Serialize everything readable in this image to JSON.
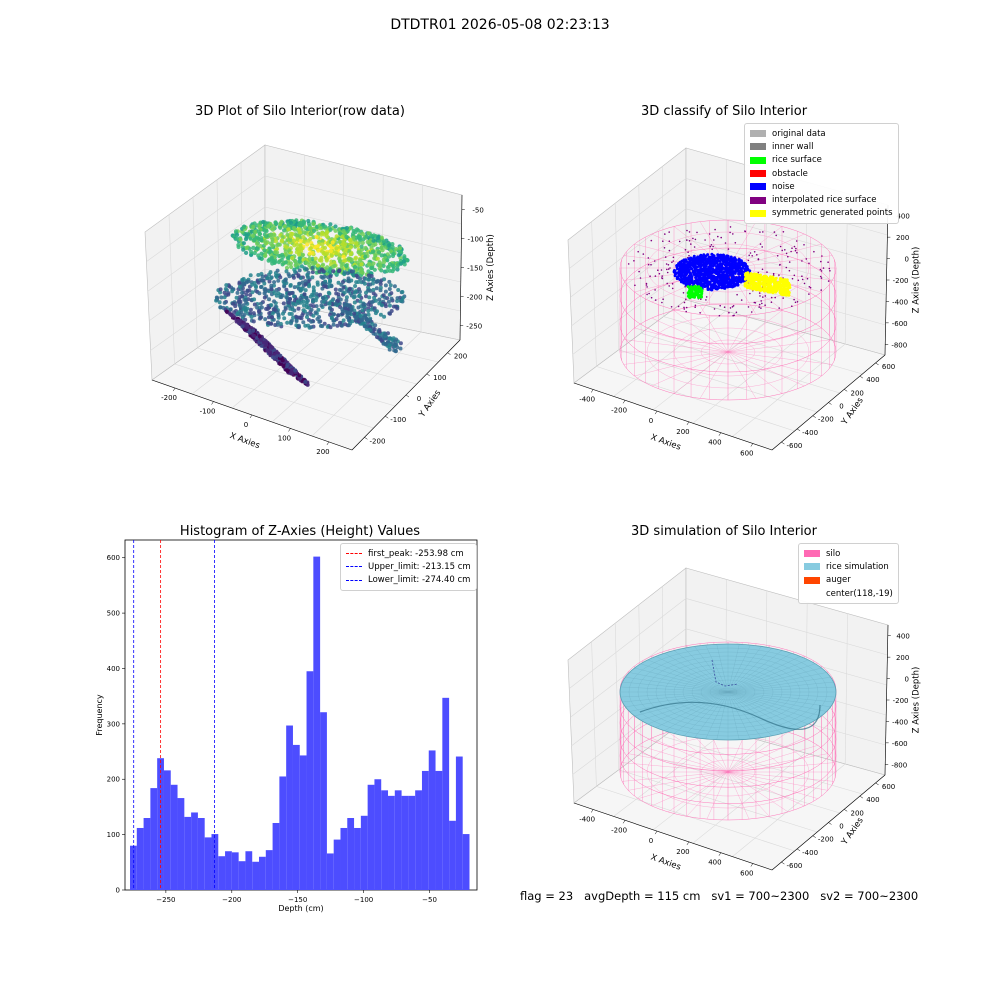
{
  "suptitle": "DTDTR01 2026-05-08 02:23:13",
  "footer": "flag = 23   avgDepth = 115 cm   sv1 = 700~2300   sv2 = 700~2300",
  "colors": {
    "hist_bar": "#4d4dff",
    "first_peak_line": "#ff0000",
    "limit_line": "#0000ff",
    "silo_wire": "#ff69b4",
    "rice_surface": "#87cbe0",
    "noise": "#0000ff",
    "rice": "#00ff00",
    "symmetric": "#ffff00",
    "interp": "#800080"
  },
  "panel_raw": {
    "title": "3D Plot of Silo Interior(row data)",
    "x_label": "X Axies",
    "y_label": "Y Axies",
    "z_label": "Z Axies (Depth)",
    "x_ticks": [
      "-200",
      "-100",
      "0",
      "100",
      "200"
    ],
    "y_ticks": [
      "200",
      "100",
      "0",
      "-100",
      "-200"
    ],
    "z_ticks": [
      "-50",
      "-100",
      "-150",
      "-200",
      "-250"
    ]
  },
  "panel_classify": {
    "title": "3D classify of Silo Interior",
    "x_label": "X Axies",
    "y_label": "Y Axies",
    "z_label": "Z Axies (Depth)",
    "x_ticks": [
      "-400",
      "-200",
      "0",
      "200",
      "400",
      "600"
    ],
    "y_ticks": [
      "600",
      "400",
      "200",
      "0",
      "-200",
      "-400",
      "-600"
    ],
    "z_ticks": [
      "400",
      "200",
      "0",
      "-200",
      "-400",
      "-600",
      "-800"
    ],
    "legend": [
      {
        "label": "original data",
        "color": "#b0b0b0"
      },
      {
        "label": "inner wall",
        "color": "#808080"
      },
      {
        "label": "rice surface",
        "color": "#00ff00"
      },
      {
        "label": "obstacle",
        "color": "#ff0000"
      },
      {
        "label": "noise",
        "color": "#0000ff"
      },
      {
        "label": "interpolated rice surface",
        "color": "#800080"
      },
      {
        "label": "symmetric generated points",
        "color": "#ffff00"
      }
    ]
  },
  "panel_sim": {
    "title": "3D simulation of Silo Interior",
    "x_label": "X Axies",
    "y_label": "Y Axies",
    "z_label": "Z Axies (Depth)",
    "x_ticks": [
      "-400",
      "-200",
      "0",
      "200",
      "400",
      "600"
    ],
    "y_ticks": [
      "600",
      "400",
      "200",
      "0",
      "-200",
      "-400",
      "-600"
    ],
    "z_ticks": [
      "400",
      "200",
      "0",
      "-200",
      "-400",
      "-600",
      "-800"
    ],
    "legend": [
      {
        "label": "silo",
        "color": "#ff69b4"
      },
      {
        "label": "rice simulation",
        "color": "#87cbe0"
      },
      {
        "label": "auger",
        "color": "#ff4500"
      },
      {
        "label": "center(118,-19)",
        "color": ""
      }
    ]
  },
  "chart_data": {
    "type": "bar",
    "title": "Histogram of Z-Axies (Height) Values",
    "xlabel": "Depth (cm)",
    "ylabel": "Frequency",
    "xlim": [
      -281,
      -14
    ],
    "ylim": [
      0,
      632
    ],
    "x_ticks": [
      -250,
      -200,
      -150,
      -100,
      -50
    ],
    "y_ticks": [
      0,
      100,
      200,
      300,
      400,
      500,
      600
    ],
    "bin_start": -277.2,
    "bin_width": 5.15,
    "values": [
      80,
      112,
      130,
      184,
      238,
      216,
      190,
      166,
      132,
      140,
      130,
      95,
      101,
      61,
      70,
      68,
      52,
      70,
      51,
      60,
      72,
      121,
      205,
      297,
      262,
      243,
      395,
      602,
      321,
      66,
      91,
      112,
      130,
      112,
      134,
      190,
      200,
      180,
      170,
      180,
      170,
      170,
      180,
      215,
      252,
      215,
      347,
      125,
      241,
      101
    ],
    "vlines": [
      {
        "name": "first_peak: -253.98 cm",
        "x": -253.98,
        "color": "#ff0000"
      },
      {
        "name": "Upper_limit: -213.15 cm",
        "x": -213.15,
        "color": "#0000ff"
      },
      {
        "name": "Lower_limit: -274.40 cm",
        "x": -274.4,
        "color": "#0000ff"
      }
    ]
  }
}
